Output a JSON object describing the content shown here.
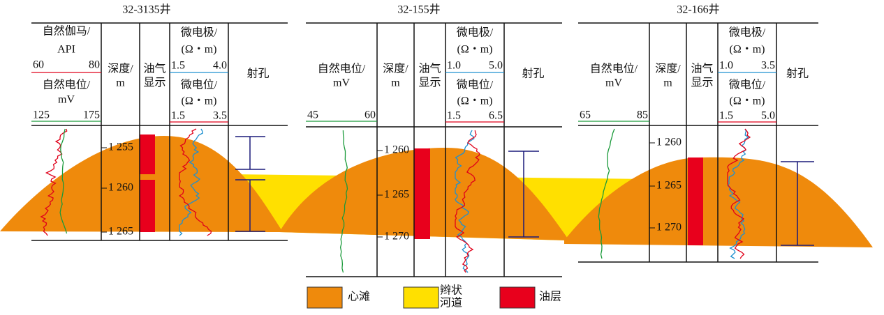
{
  "wells": [
    {
      "title": "32-3135井",
      "curve_tracks": [
        {
          "label": [
            "自然伽马/",
            "API"
          ],
          "scale": [
            "60",
            "80"
          ]
        },
        {
          "label": [
            "自然电位/",
            "mV"
          ],
          "scale": [
            "125",
            "175"
          ]
        }
      ],
      "depth_header": [
        "深度/",
        "m"
      ],
      "show_header": [
        "油气",
        "显示"
      ],
      "micro_tracks": [
        {
          "label": [
            "微电极/",
            "(Ω・m)"
          ],
          "scale": [
            "1.5",
            "4.0"
          ]
        },
        {
          "label": [
            "微电位/",
            "(Ω・m)"
          ],
          "scale": [
            "1.5",
            "3.5"
          ]
        }
      ],
      "perf_header": "射孔",
      "depths": [
        "1 255",
        "1 260",
        "1 265"
      ]
    },
    {
      "title": "32-155井",
      "curve_tracks": [
        {
          "label": [
            "自然电位/",
            "mV"
          ],
          "scale": [
            "45",
            "60"
          ]
        }
      ],
      "depth_header": [
        "深度/",
        "m"
      ],
      "show_header": [
        "油气",
        "显示"
      ],
      "micro_tracks": [
        {
          "label": [
            "微电极/",
            "(Ω・m)"
          ],
          "scale": [
            "1.0",
            "5.0"
          ]
        },
        {
          "label": [
            "微电位/",
            "(Ω・m)"
          ],
          "scale": [
            "1.5",
            "6.5"
          ]
        }
      ],
      "perf_header": "射孔",
      "depths": [
        "1 260",
        "1 265",
        "1 270"
      ]
    },
    {
      "title": "32-166井",
      "curve_tracks": [
        {
          "label": [
            "自然电位/",
            "mV"
          ],
          "scale": [
            "65",
            "85"
          ]
        }
      ],
      "depth_header": [
        "深度/",
        "m"
      ],
      "show_header": [
        "油气",
        "显示"
      ],
      "micro_tracks": [
        {
          "label": [
            "微电极/",
            "(Ω・m)"
          ],
          "scale": [
            "1.0",
            "3.5"
          ]
        },
        {
          "label": [
            "微电位/",
            "(Ω・m)"
          ],
          "scale": [
            "1.5",
            "5.0"
          ]
        }
      ],
      "perf_header": "射孔",
      "depths": [
        "1 260",
        "1 265",
        "1 270"
      ]
    }
  ],
  "legend": [
    {
      "label": [
        "心滩"
      ]
    },
    {
      "label": [
        "辫状",
        "河道"
      ]
    },
    {
      "label": [
        "油层"
      ]
    }
  ]
}
